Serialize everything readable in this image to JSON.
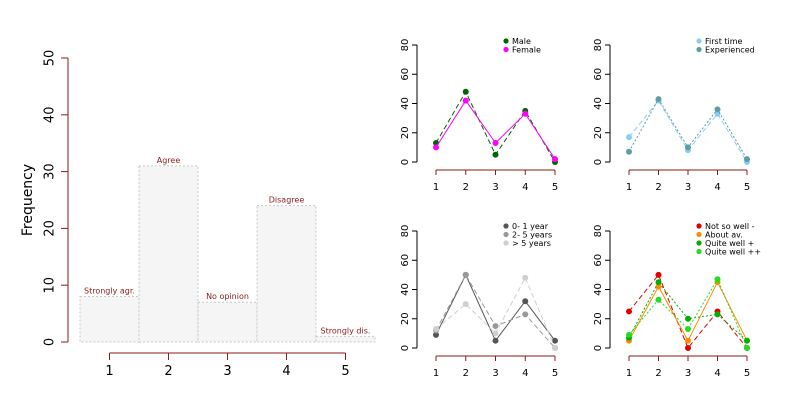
{
  "colors": {
    "axis_red": "#8b1a1a",
    "axis_black": "#000000",
    "bar_fill": "#f5f5f5",
    "bar_border": "#c8c8c8",
    "bar_label": "#8b1a1a"
  },
  "chart_data": [
    {
      "type": "bar",
      "ylabel": "Frequency",
      "categories": [
        "1",
        "2",
        "3",
        "4",
        "5"
      ],
      "values": [
        8,
        31,
        7,
        24,
        1
      ],
      "bar_labels": [
        "Strongly agr.",
        "Agree",
        "No opinion",
        "Disagree",
        "Strongly dis."
      ],
      "ylim": [
        0,
        50
      ],
      "yticks": [
        0,
        10,
        20,
        30,
        40,
        50
      ],
      "grid": false
    },
    {
      "type": "line",
      "x": [
        1,
        2,
        3,
        4,
        5
      ],
      "ylim": [
        0,
        80
      ],
      "yticks": [
        0,
        20,
        40,
        60,
        80
      ],
      "legend_position": "top-right",
      "series": [
        {
          "name": "Male",
          "color": "#006400",
          "dash": "dashed",
          "values": [
            13,
            48,
            5,
            35,
            0
          ]
        },
        {
          "name": "Female",
          "color": "#ff00ff",
          "dash": "solid",
          "values": [
            10,
            42,
            13,
            33,
            2
          ]
        }
      ]
    },
    {
      "type": "line",
      "x": [
        1,
        2,
        3,
        4,
        5
      ],
      "ylim": [
        0,
        80
      ],
      "yticks": [
        0,
        20,
        40,
        60,
        80
      ],
      "legend_position": "top-right",
      "series": [
        {
          "name": "First time",
          "color": "#87cefa",
          "dash": "dashed",
          "values": [
            17,
            42,
            8,
            33,
            0
          ]
        },
        {
          "name": "Experienced",
          "color": "#5f9ea0",
          "dash": "dotted",
          "values": [
            7,
            43,
            10,
            36,
            2
          ]
        }
      ]
    },
    {
      "type": "line",
      "x": [
        1,
        2,
        3,
        4,
        5
      ],
      "ylim": [
        0,
        80
      ],
      "yticks": [
        0,
        20,
        40,
        60,
        80
      ],
      "legend_position": "top-right",
      "series": [
        {
          "name": "0- 1 year",
          "color": "#555555",
          "dash": "solid",
          "values": [
            9,
            50,
            5,
            32,
            5
          ]
        },
        {
          "name": "2- 5 years",
          "color": "#999999",
          "dash": "dashed",
          "values": [
            12,
            50,
            15,
            23,
            0
          ]
        },
        {
          "name": "> 5 years",
          "color": "#cfcfcf",
          "dash": "dashed",
          "values": [
            13,
            30,
            10,
            48,
            0
          ]
        }
      ]
    },
    {
      "type": "line",
      "x": [
        1,
        2,
        3,
        4,
        5
      ],
      "ylim": [
        0,
        80
      ],
      "yticks": [
        0,
        20,
        40,
        60,
        80
      ],
      "legend_position": "top-right",
      "series": [
        {
          "name": "Not so well -",
          "color": "#e00000",
          "dash": "dashed",
          "values": [
            25,
            50,
            0,
            25,
            0
          ]
        },
        {
          "name": "About av.",
          "color": "#ff8c00",
          "dash": "solid",
          "values": [
            5,
            42,
            5,
            45,
            5
          ]
        },
        {
          "name": "Quite well +",
          "color": "#00b000",
          "dash": "dotted",
          "values": [
            7,
            45,
            20,
            23,
            5
          ]
        },
        {
          "name": "Quite well ++",
          "color": "#22dd22",
          "dash": "dotted",
          "values": [
            9,
            33,
            13,
            47,
            0
          ]
        }
      ]
    }
  ]
}
